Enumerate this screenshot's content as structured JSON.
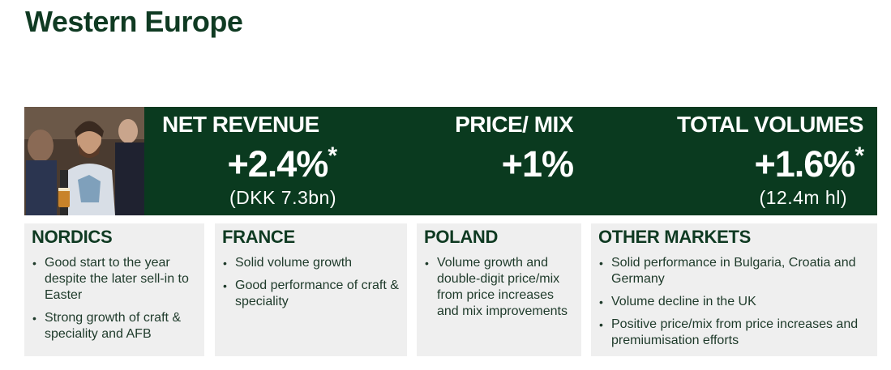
{
  "page": {
    "title": "Western Europe"
  },
  "kpis": [
    {
      "label": "NET REVENUE",
      "value": "+2.4%",
      "marker": "*",
      "sub": "(DKK 7.3bn)"
    },
    {
      "label": "PRICE/ MIX",
      "value": "+1%",
      "marker": "",
      "sub": ""
    },
    {
      "label": "TOTAL VOLUMES",
      "value": "+1.6%",
      "marker": "*",
      "sub": "(12.4m hl)"
    }
  ],
  "cards": [
    {
      "title": "NORDICS",
      "bullets": [
        "Good start to the year despite the later sell-in to Easter",
        "Strong growth of craft & speciality and AFB"
      ]
    },
    {
      "title": "FRANCE",
      "bullets": [
        "Solid volume growth",
        "Good performance of craft & speciality"
      ]
    },
    {
      "title": "POLAND",
      "bullets": [
        "Volume growth and double-digit price/mix from price increases and mix improvements"
      ]
    },
    {
      "title": "OTHER MARKETS",
      "bullets": [
        "Solid performance in Bulgaria, Croatia and Germany",
        "Volume decline in the UK",
        "Positive price/mix from price increases and premiumisation efforts"
      ]
    }
  ],
  "colors": {
    "brand_dark_green": "#0a3a1f",
    "card_bg": "#efefef",
    "text_green": "#0f3a22"
  }
}
